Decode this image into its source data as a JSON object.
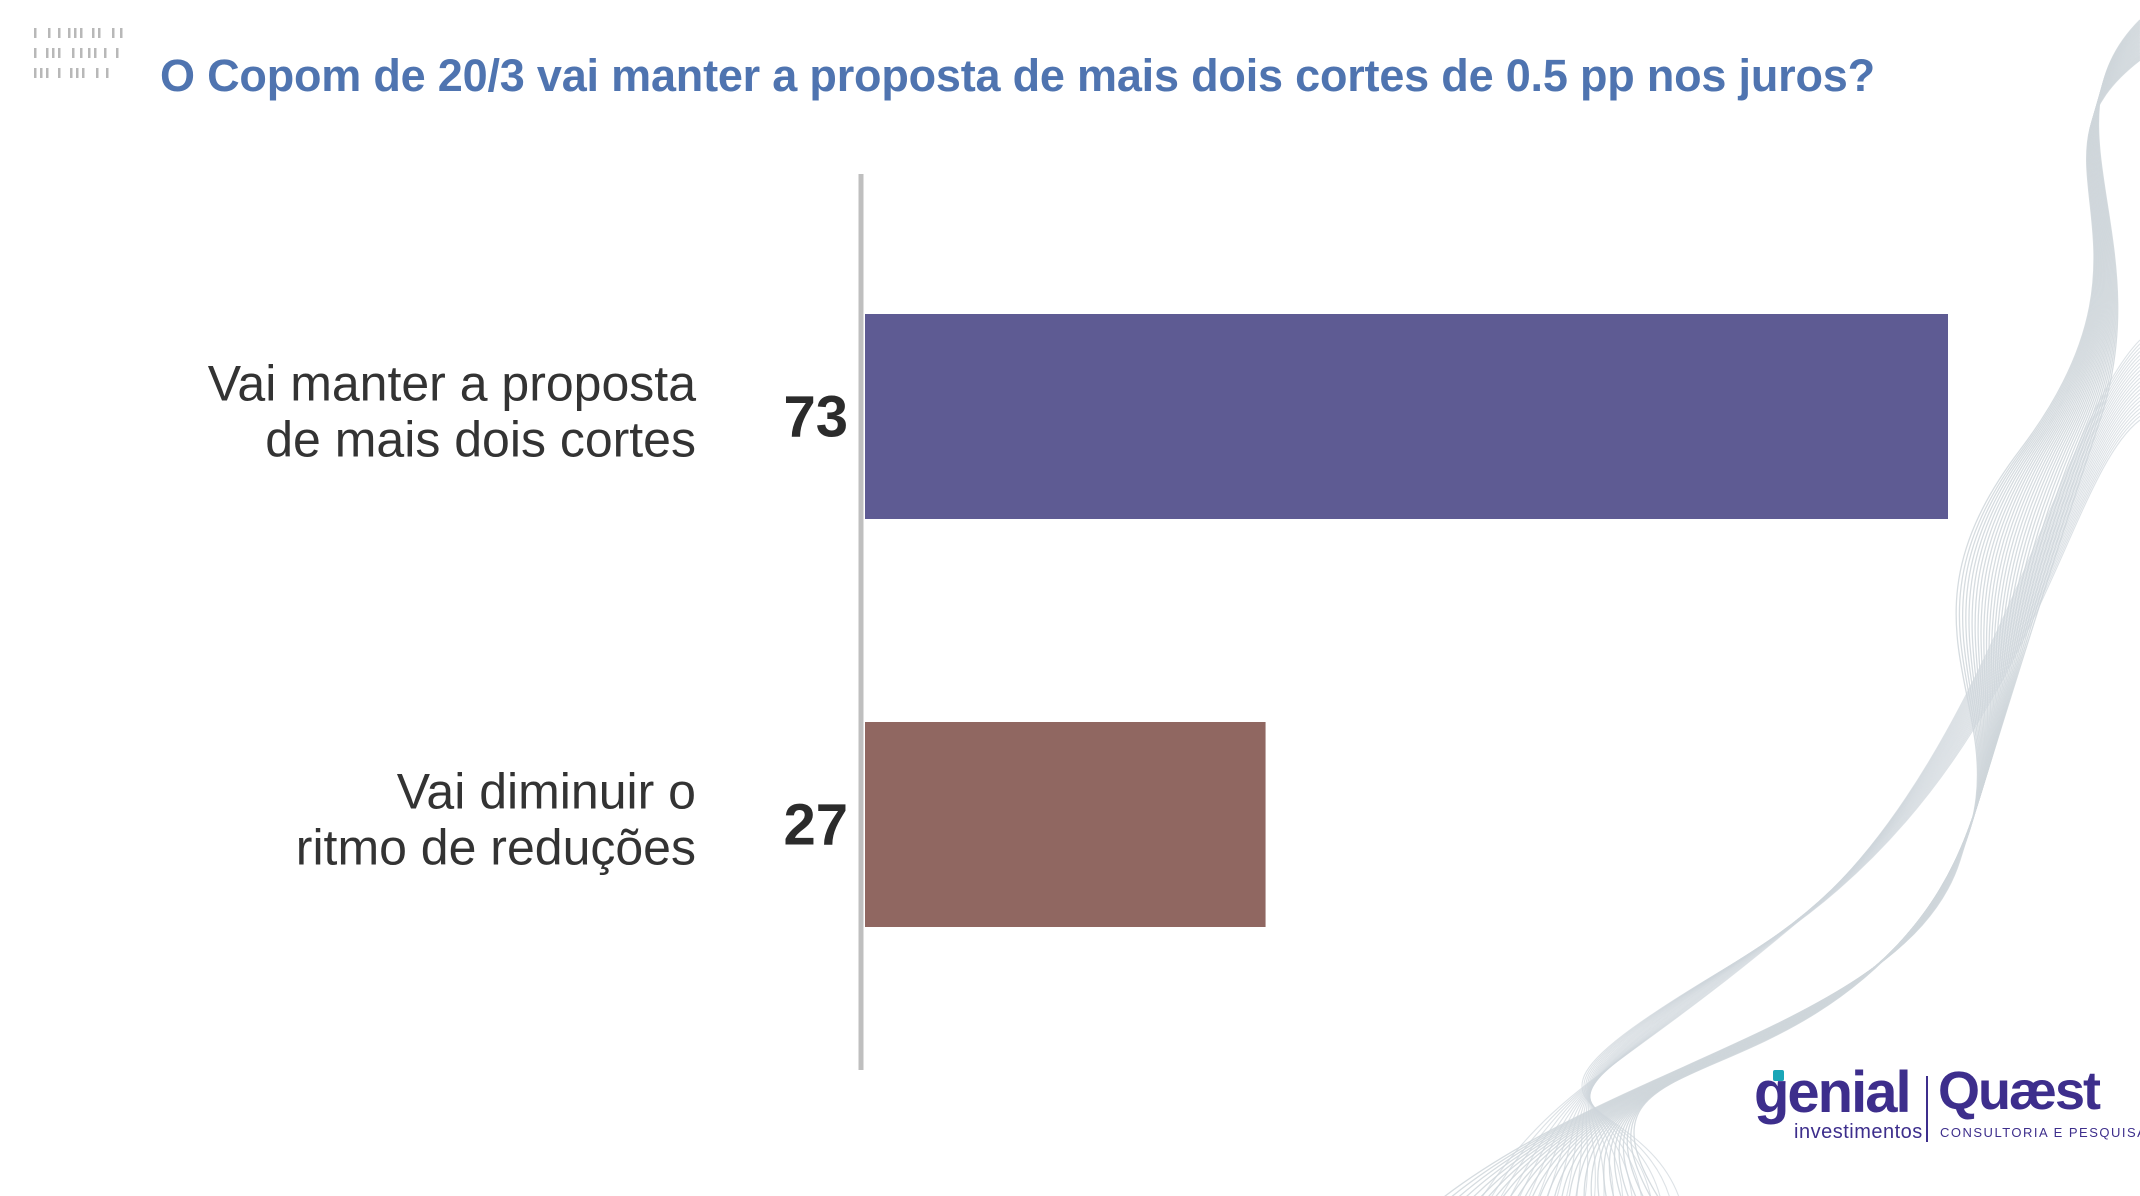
{
  "title": "O Copom de 20/3 vai manter a proposta de mais dois cortes de 0.5 pp nos juros?",
  "colors": {
    "title": "#4f74b0",
    "bar_primary": "#5e5b93",
    "bar_secondary": "#906761",
    "axis": "#bfbfbf",
    "label_text": "#333333",
    "value_text": "#2b2b2b",
    "wave": "#cfd6db",
    "logo": "#3d2e8c"
  },
  "chart_data": {
    "type": "bar",
    "orientation": "horizontal",
    "categories": [
      [
        "Vai manter a proposta",
        "de mais dois cortes"
      ],
      [
        "Vai diminuir o",
        "ritmo de reduções"
      ]
    ],
    "values": [
      73,
      27
    ],
    "value_labels": [
      "73",
      "27"
    ],
    "xlim": [
      0,
      73
    ],
    "grid": false,
    "legend": "none"
  },
  "logos": {
    "genial": {
      "word": "genial",
      "sub": "investimentos"
    },
    "quaest": {
      "word": "Quæst",
      "sub": "CONSULTORIA E PESQUISA"
    }
  },
  "icons": {
    "corner": "dotted-marks-decoration",
    "background": "wave-lines-decoration"
  }
}
